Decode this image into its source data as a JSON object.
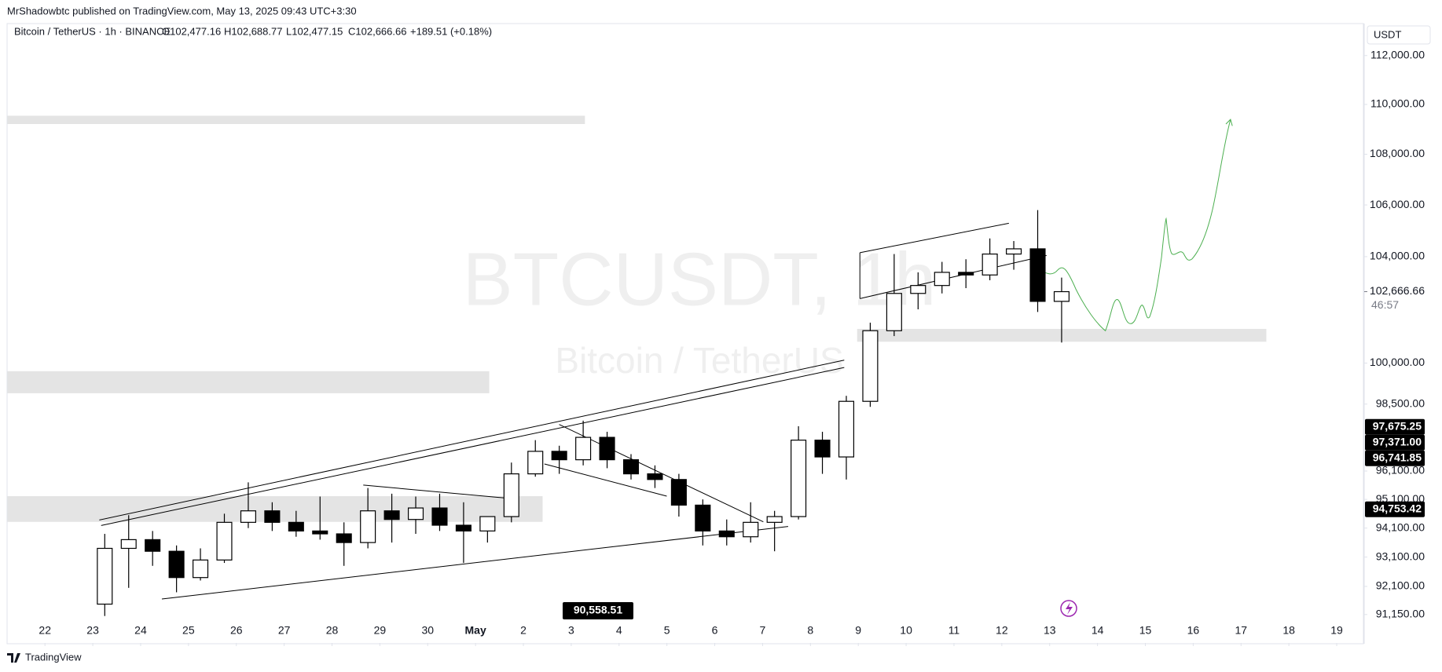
{
  "header": {
    "published": "MrShadowbtc published on TradingView.com, May 13, 2025 09:43 UTC+3:30"
  },
  "legend": {
    "symbol": "Bitcoin / TetherUS · 1h · BINANCE",
    "open": "O102,477.16",
    "high": "H102,688.77",
    "low": "L102,477.15",
    "close": "C102,666.66",
    "change": "+189.51 (+0.18%)"
  },
  "watermark": {
    "ticker": "BTCUSDT, 1h",
    "name": "Bitcoin / TetherUS"
  },
  "currency": "USDT",
  "footer": {
    "brand": "TradingView"
  },
  "chart_data": {
    "type": "candlestick",
    "log_scale": true,
    "grid": false,
    "up_color": "#ffffff",
    "down_color": "#000000",
    "wick_color": "#000000",
    "xlim": [
      "2025-04-21T05:00",
      "2025-05-19T13:00"
    ],
    "ylim": [
      90200,
      113230
    ],
    "xticks": [
      {
        "value": "2025-04-22T00:00",
        "label": "22"
      },
      {
        "value": "2025-04-23T00:00",
        "label": "23"
      },
      {
        "value": "2025-04-24T00:00",
        "label": "24"
      },
      {
        "value": "2025-04-25T00:00",
        "label": "25"
      },
      {
        "value": "2025-04-26T00:00",
        "label": "26"
      },
      {
        "value": "2025-04-27T00:00",
        "label": "27"
      },
      {
        "value": "2025-04-28T00:00",
        "label": "28"
      },
      {
        "value": "2025-04-29T00:00",
        "label": "29"
      },
      {
        "value": "2025-04-30T00:00",
        "label": "30"
      },
      {
        "value": "2025-05-01T00:00",
        "label": "May"
      },
      {
        "value": "2025-05-02T00:00",
        "label": "2"
      },
      {
        "value": "2025-05-03T00:00",
        "label": "3"
      },
      {
        "value": "2025-05-04T00:00",
        "label": "4"
      },
      {
        "value": "2025-05-05T00:00",
        "label": "5"
      },
      {
        "value": "2025-05-06T00:00",
        "label": "6"
      },
      {
        "value": "2025-05-07T00:00",
        "label": "7"
      },
      {
        "value": "2025-05-08T00:00",
        "label": "8"
      },
      {
        "value": "2025-05-09T00:00",
        "label": "9"
      },
      {
        "value": "2025-05-10T00:00",
        "label": "10"
      },
      {
        "value": "2025-05-11T00:00",
        "label": "11"
      },
      {
        "value": "2025-05-12T00:00",
        "label": "12"
      },
      {
        "value": "2025-05-13T00:00",
        "label": "13"
      },
      {
        "value": "2025-05-14T00:00",
        "label": "14"
      },
      {
        "value": "2025-05-15T00:00",
        "label": "15"
      },
      {
        "value": "2025-05-16T00:00",
        "label": "16"
      },
      {
        "value": "2025-05-17T00:00",
        "label": "17"
      },
      {
        "value": "2025-05-18T00:00",
        "label": "18"
      },
      {
        "value": "2025-05-19T00:00",
        "label": "19"
      }
    ],
    "yticks": [
      {
        "value": 112000,
        "label": "112,000.00"
      },
      {
        "value": 110000,
        "label": "110,000.00"
      },
      {
        "value": 108000,
        "label": "108,000.00"
      },
      {
        "value": 106000,
        "label": "106,000.00"
      },
      {
        "value": 104000,
        "label": "104,000.00"
      },
      {
        "value": 100000,
        "label": "100,000.00"
      },
      {
        "value": 98500,
        "label": "98,500.00"
      },
      {
        "value": 96100,
        "label": "96,100.00"
      },
      {
        "value": 95100,
        "label": "95,100.00"
      },
      {
        "value": 94100,
        "label": "94,100.00"
      },
      {
        "value": 93100,
        "label": "93,100.00"
      },
      {
        "value": 92100,
        "label": "92,100.00"
      },
      {
        "value": 91150,
        "label": "91,150.00"
      }
    ],
    "last_price": {
      "value": 102666.66,
      "label": "102,666.66"
    },
    "countdown": "46:57",
    "price_labels": [
      {
        "value": 97675.25,
        "label": "97,675.25"
      },
      {
        "value": 97371.0,
        "label": "97,371.00"
      },
      {
        "value": 96741.85,
        "label": "96,741.85"
      },
      {
        "value": 94753.42,
        "label": "94,753.42"
      }
    ],
    "low_marker": "90,558.51",
    "x": [
      "2025-04-23T00:00",
      "2025-04-23T12:00",
      "2025-04-24T00:00",
      "2025-04-24T12:00",
      "2025-04-25T00:00",
      "2025-04-25T12:00",
      "2025-04-26T00:00",
      "2025-04-26T12:00",
      "2025-04-27T00:00",
      "2025-04-27T12:00",
      "2025-04-28T00:00",
      "2025-04-28T12:00",
      "2025-04-29T00:00",
      "2025-04-29T12:00",
      "2025-04-30T00:00",
      "2025-04-30T12:00",
      "2025-05-01T00:00",
      "2025-05-01T12:00",
      "2025-05-02T00:00",
      "2025-05-02T12:00",
      "2025-05-03T00:00",
      "2025-05-03T12:00",
      "2025-05-04T00:00",
      "2025-05-04T12:00",
      "2025-05-05T00:00",
      "2025-05-05T12:00",
      "2025-05-06T00:00",
      "2025-05-06T12:00",
      "2025-05-07T00:00",
      "2025-05-07T12:00",
      "2025-05-08T00:00",
      "2025-05-08T12:00",
      "2025-05-09T00:00",
      "2025-05-09T12:00",
      "2025-05-10T00:00",
      "2025-05-10T12:00",
      "2025-05-11T00:00",
      "2025-05-11T12:00",
      "2025-05-12T00:00",
      "2025-05-12T12:00",
      "2025-05-13T00:00"
    ],
    "open": [
      91500,
      93400,
      93700,
      93300,
      92400,
      93000,
      94300,
      94700,
      94300,
      94000,
      93900,
      93600,
      94700,
      94400,
      94800,
      94200,
      94000,
      94500,
      96000,
      96800,
      96500,
      97300,
      96500,
      96000,
      95800,
      94900,
      94000,
      93800,
      94300,
      94500,
      97200,
      96600,
      98600,
      101200,
      102600,
      102900,
      103400,
      103300,
      104100,
      104300,
      102300
    ],
    "high": [
      93900,
      94550,
      94000,
      93500,
      93400,
      94600,
      95700,
      95000,
      94700,
      95200,
      94300,
      95500,
      95300,
      95200,
      95300,
      95000,
      94500,
      96400,
      97200,
      97000,
      97900,
      97500,
      96700,
      96300,
      96000,
      95100,
      94400,
      95000,
      94700,
      97700,
      97500,
      98800,
      101500,
      104100,
      103400,
      103800,
      103900,
      104700,
      104600,
      105800,
      103200
    ],
    "low": [
      91100,
      92050,
      92800,
      91900,
      92300,
      92900,
      94100,
      94000,
      93800,
      93700,
      92800,
      93400,
      93600,
      93900,
      94000,
      92900,
      93600,
      94300,
      95900,
      96000,
      96300,
      96200,
      95800,
      95500,
      94500,
      93500,
      93500,
      93600,
      93300,
      94400,
      96000,
      95800,
      98400,
      101000,
      102000,
      102600,
      102800,
      103100,
      103500,
      101900,
      100760
    ],
    "close": [
      93400,
      93700,
      93300,
      92400,
      93000,
      94300,
      94700,
      94300,
      94000,
      93900,
      93600,
      94700,
      94400,
      94800,
      94200,
      94000,
      94500,
      96000,
      96800,
      96500,
      97300,
      96500,
      96000,
      95800,
      94900,
      94000,
      93800,
      94300,
      94500,
      97200,
      96600,
      98600,
      101200,
      102600,
      102900,
      103400,
      103300,
      104100,
      104300,
      102300,
      102666.66
    ]
  }
}
